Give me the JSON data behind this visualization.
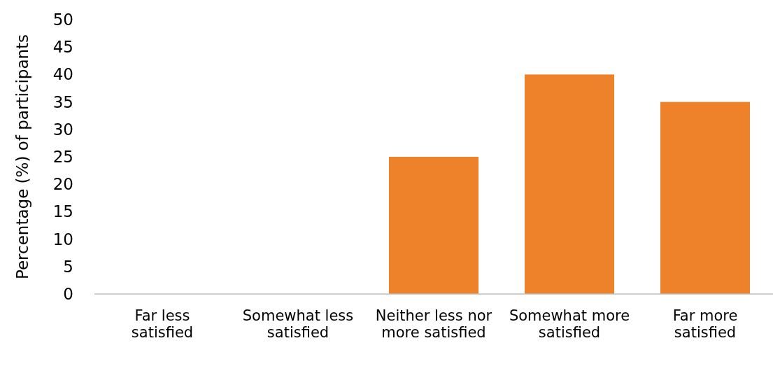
{
  "chart_data": {
    "type": "bar",
    "ylabel": "Percentage (%) of participants",
    "categories": [
      "Far less satisfied",
      "Somewhat less satisfied",
      "Neither less nor more satisfied",
      "Somewhat more satisfied",
      "Far more satisfied"
    ],
    "values": [
      0,
      0,
      25,
      40,
      35
    ],
    "color": "#ee822a",
    "ylim": [
      0,
      50
    ],
    "yticks": [
      0,
      5,
      10,
      15,
      20,
      25,
      30,
      35,
      40,
      45,
      50
    ],
    "grid": false
  }
}
